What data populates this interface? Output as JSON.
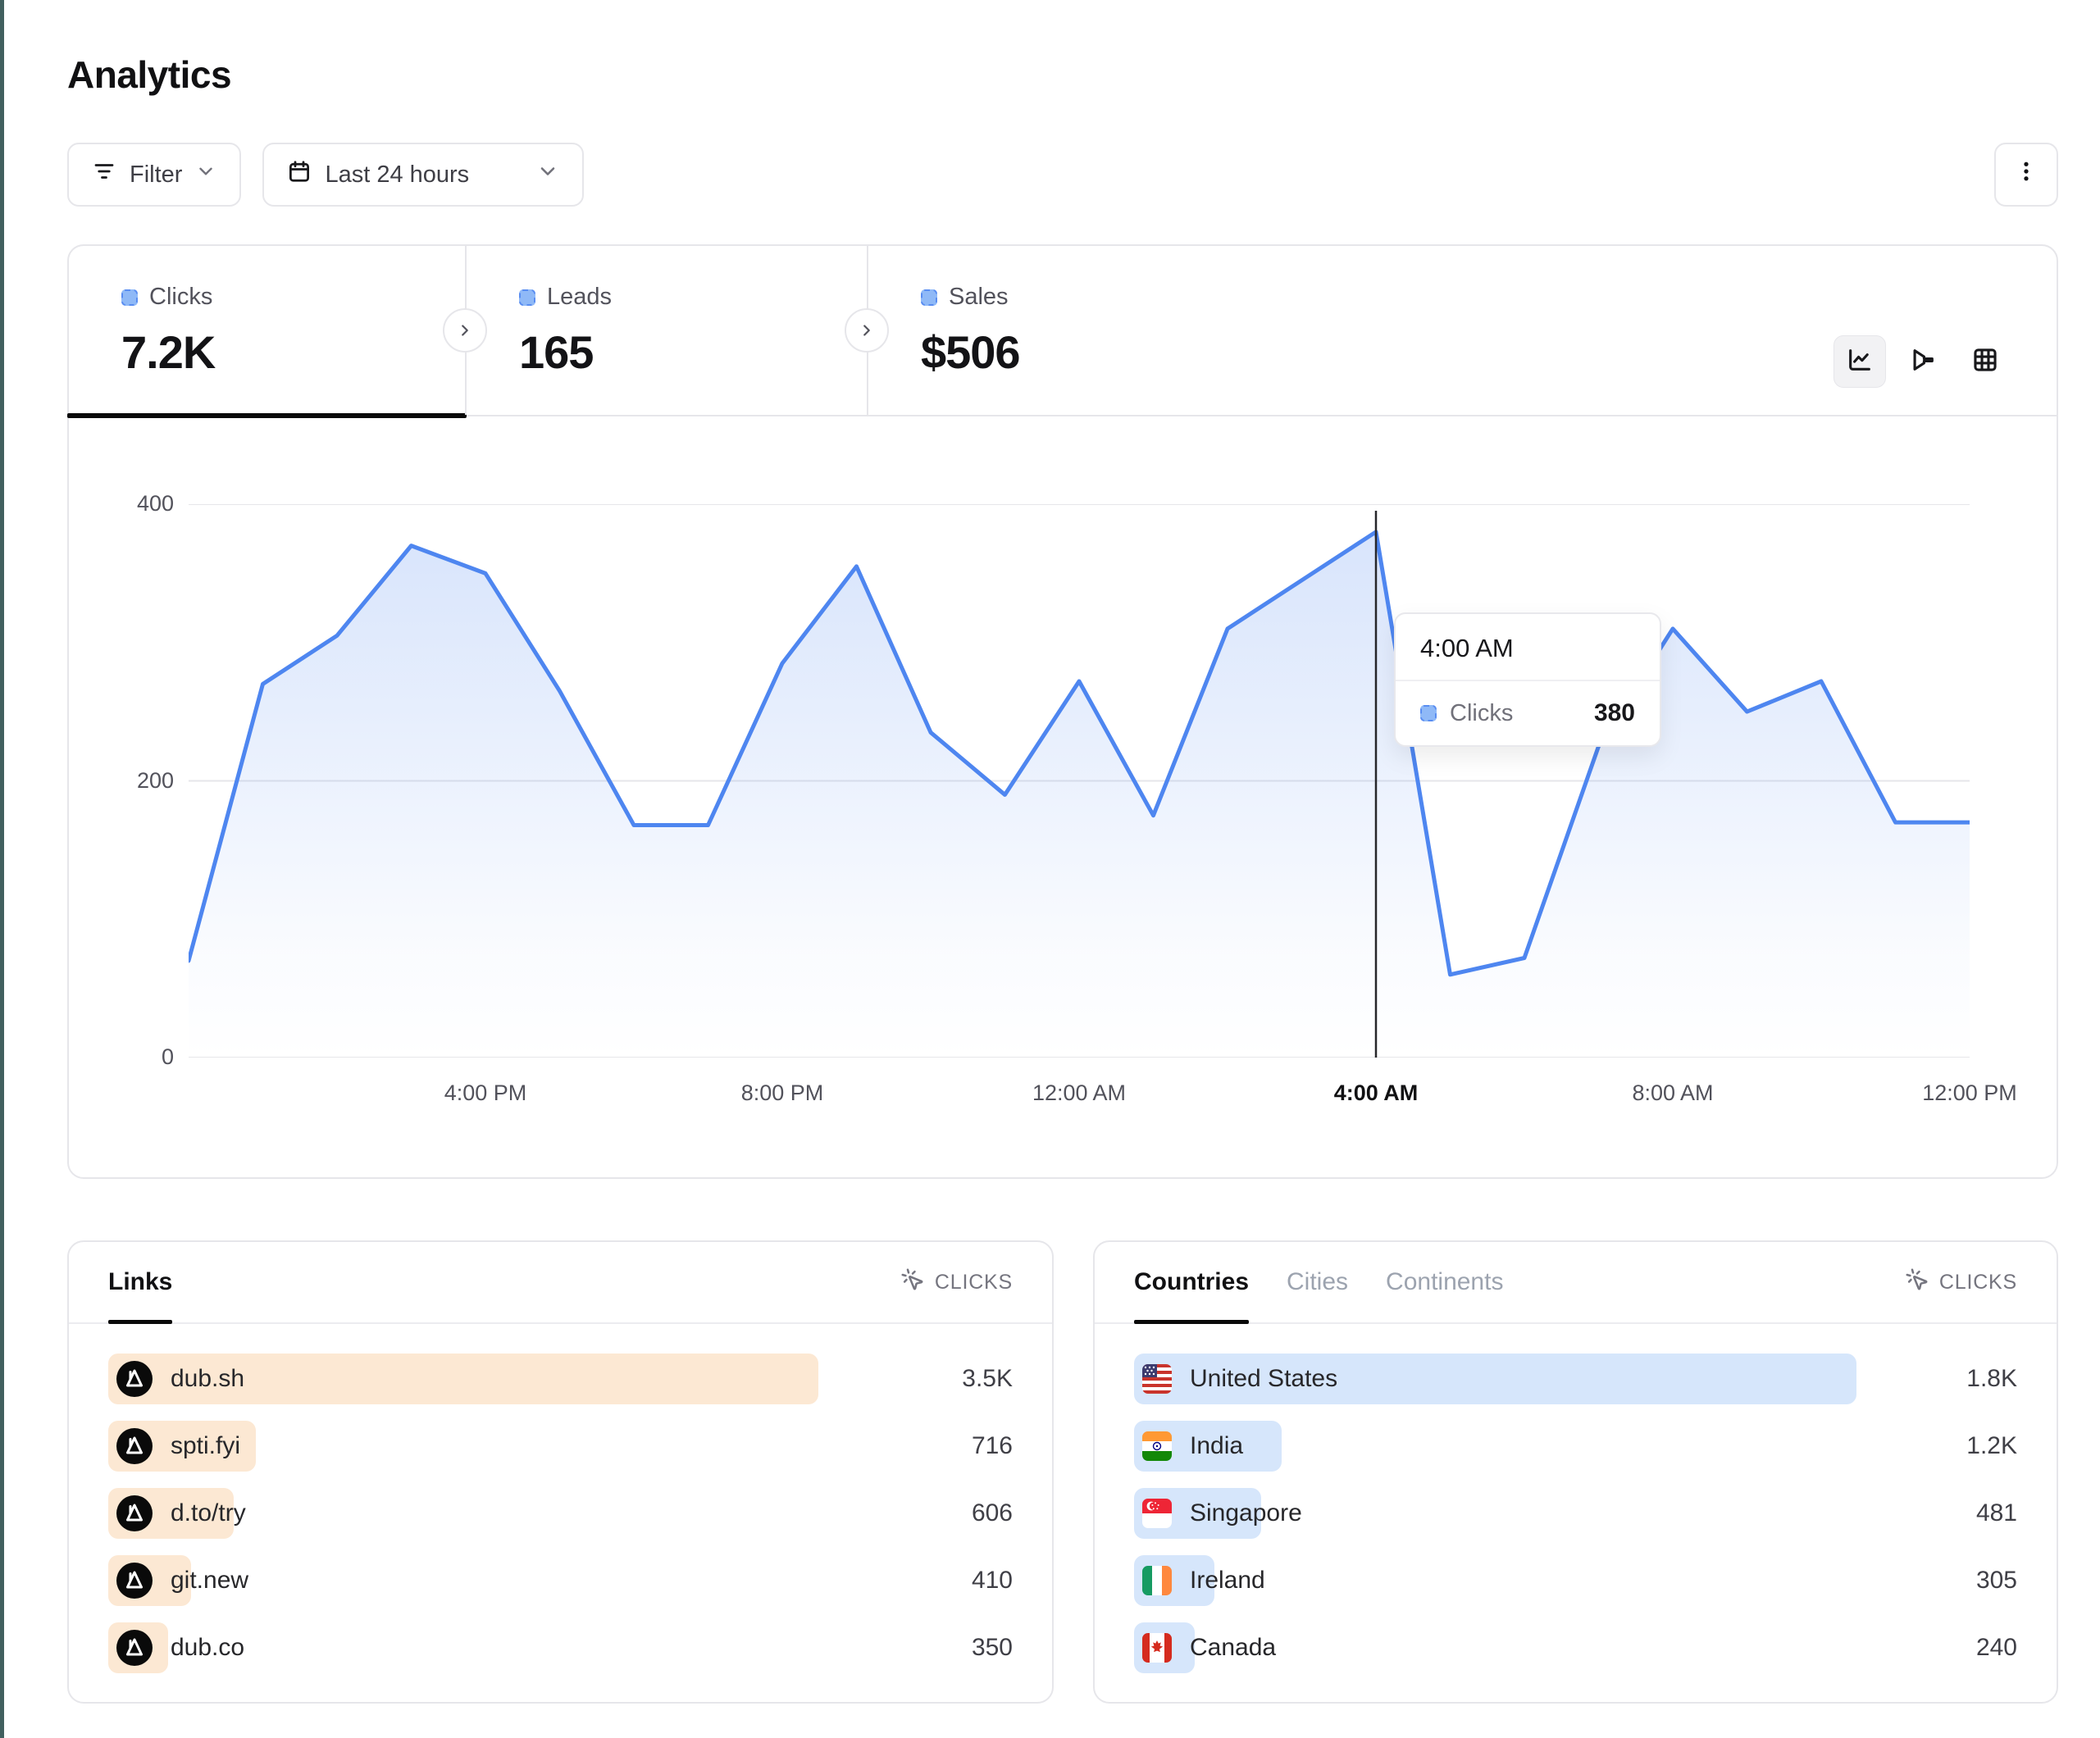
{
  "page": {
    "title": "Analytics"
  },
  "toolbar": {
    "filter_label": "Filter",
    "date_range_label": "Last 24 hours",
    "kebab_menu": "more-options"
  },
  "stats": [
    {
      "label": "Clicks",
      "value": "7.2K",
      "active": true
    },
    {
      "label": "Leads",
      "value": "165",
      "active": false
    },
    {
      "label": "Sales",
      "value": "$506",
      "active": false
    }
  ],
  "view_toggle": [
    "line-chart",
    "funnel-chart",
    "table"
  ],
  "chart_data": {
    "type": "area",
    "title": "Clicks over the last 24 hours",
    "series_name": "Clicks",
    "x": [
      "12:00 PM",
      "1:00 PM",
      "2:00 PM",
      "3:00 PM",
      "4:00 PM",
      "5:00 PM",
      "6:00 PM",
      "7:00 PM",
      "8:00 PM",
      "9:00 PM",
      "10:00 PM",
      "11:00 PM",
      "12:00 AM",
      "1:00 AM",
      "2:00 AM",
      "3:00 AM",
      "4:00 AM",
      "5:00 AM",
      "6:00 AM",
      "7:00 AM",
      "8:00 AM",
      "9:00 AM",
      "10:00 AM",
      "11:00 AM",
      "12:00 PM"
    ],
    "values": [
      70,
      270,
      305,
      370,
      350,
      265,
      168,
      168,
      285,
      355,
      235,
      190,
      272,
      175,
      310,
      345,
      380,
      60,
      72,
      225,
      310,
      250,
      272,
      170,
      170
    ],
    "x_tick_labels": [
      "4:00 PM",
      "8:00 PM",
      "12:00 AM",
      "4:00 AM",
      "8:00 AM",
      "12:00 PM"
    ],
    "highlight_tick": "4:00 AM",
    "y_ticks": [
      0,
      200,
      400
    ],
    "ylim": [
      0,
      400
    ],
    "grid": "horizontal",
    "highlight": {
      "index": 16,
      "x_label": "4:00 AM",
      "series": "Clicks",
      "value": 380
    }
  },
  "tooltip": {
    "time": "4:00 AM",
    "series": "Clicks",
    "value": "380"
  },
  "links_panel": {
    "tab": "Links",
    "metric": "CLICKS",
    "rows": [
      {
        "label": "dub.sh",
        "value": "3.5K",
        "bar_pct": 89.0
      },
      {
        "label": "spti.fyi",
        "value": "716",
        "bar_pct": 18.5
      },
      {
        "label": "d.to/try",
        "value": "606",
        "bar_pct": 15.7
      },
      {
        "label": "git.new",
        "value": "410",
        "bar_pct": 10.4
      },
      {
        "label": "dub.co",
        "value": "350",
        "bar_pct": 7.5
      }
    ]
  },
  "countries_panel": {
    "tabs": [
      "Countries",
      "Cities",
      "Continents"
    ],
    "active_tab": "Countries",
    "metric": "CLICKS",
    "rows": [
      {
        "label": "United States",
        "flag": "us",
        "value": "1.8K",
        "bar_pct": 93.0
      },
      {
        "label": "India",
        "flag": "in",
        "value": "1.2K",
        "bar_pct": 19.0
      },
      {
        "label": "Singapore",
        "flag": "sg",
        "value": "481",
        "bar_pct": 16.4
      },
      {
        "label": "Ireland",
        "flag": "ie",
        "value": "305",
        "bar_pct": 10.3
      },
      {
        "label": "Canada",
        "flag": "ca",
        "value": "240",
        "bar_pct": 7.8
      }
    ]
  },
  "colors": {
    "accent_line": "#4e86f0",
    "legend_square": "#8fb9f7",
    "bar_peach": "#fce8d3",
    "bar_blue": "#d6e6fb",
    "crosshair": "#27272a",
    "grid": "#e6e6ea",
    "edge_strip": "#41605f"
  }
}
